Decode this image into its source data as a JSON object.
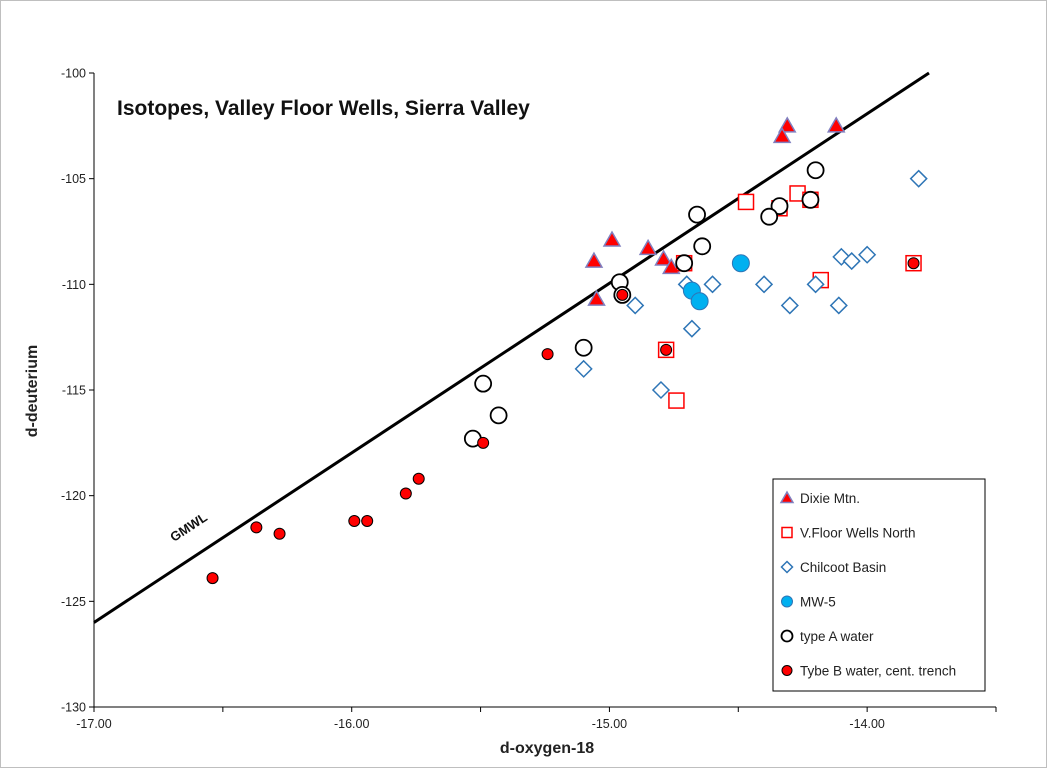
{
  "chart_data": {
    "type": "scatter",
    "title": "Isotopes, Valley Floor Wells, Sierra Valley",
    "xlabel": "d-oxygen-18",
    "ylabel": "d-deuterium",
    "xlim": [
      -17.0,
      -13.5
    ],
    "ylim": [
      -130,
      -100
    ],
    "x_ticks": [
      -17.0,
      -16.0,
      -15.0,
      -14.0
    ],
    "x_tick_labels": [
      "-17.00",
      "-16.00",
      "-15.00",
      "-14.00"
    ],
    "x_minor_ticks": [
      -16.5,
      -15.5,
      -14.5,
      -13.5
    ],
    "y_ticks": [
      -100,
      -105,
      -110,
      -115,
      -120,
      -125,
      -130
    ],
    "y_tick_labels": [
      "-100",
      "-105",
      "-110",
      "-115",
      "-120",
      "-125",
      "-130"
    ],
    "grid": false,
    "legend_position": "bottom-right",
    "reference_line": {
      "label": "GMWL",
      "x": [
        -17.0,
        -13.76
      ],
      "y": [
        -126.0,
        -100.0
      ]
    },
    "series": [
      {
        "name": "Dixie Mtn.",
        "marker": "triangle",
        "fill": "#ff0000",
        "stroke": "#8080c0",
        "points": [
          [
            -14.31,
            -102.5
          ],
          [
            -14.33,
            -103.0
          ],
          [
            -14.12,
            -102.5
          ],
          [
            -14.99,
            -107.9
          ],
          [
            -14.85,
            -108.3
          ],
          [
            -15.06,
            -108.9
          ],
          [
            -14.79,
            -108.8
          ],
          [
            -14.76,
            -109.2
          ],
          [
            -15.05,
            -110.7
          ],
          [
            -14.95,
            -110.3
          ]
        ]
      },
      {
        "name": "V.Floor Wells North",
        "marker": "square",
        "fill": "#ffffff",
        "stroke": "#ff0000",
        "points": [
          [
            -14.47,
            -106.1
          ],
          [
            -14.27,
            -105.7
          ],
          [
            -14.34,
            -106.4
          ],
          [
            -14.22,
            -106.0
          ],
          [
            -14.71,
            -109.0
          ],
          [
            -13.82,
            -109.0
          ],
          [
            -14.18,
            -109.8
          ],
          [
            -14.78,
            -113.1
          ],
          [
            -14.74,
            -115.5
          ]
        ]
      },
      {
        "name": "Chilcoot Basin",
        "marker": "diamond",
        "fill": "#ffffff",
        "stroke": "#2e75b6",
        "points": [
          [
            -13.8,
            -105.0
          ],
          [
            -14.1,
            -108.7
          ],
          [
            -14.0,
            -108.6
          ],
          [
            -14.06,
            -108.9
          ],
          [
            -14.7,
            -110.0
          ],
          [
            -14.6,
            -110.0
          ],
          [
            -14.4,
            -110.0
          ],
          [
            -14.2,
            -110.0
          ],
          [
            -14.9,
            -111.0
          ],
          [
            -14.3,
            -111.0
          ],
          [
            -14.11,
            -111.0
          ],
          [
            -14.68,
            -112.1
          ],
          [
            -15.1,
            -114.0
          ],
          [
            -14.8,
            -115.0
          ]
        ]
      },
      {
        "name": "MW-5",
        "marker": "circle-filled",
        "fill": "#00b0f0",
        "stroke": "#2e75b6",
        "points": [
          [
            -14.49,
            -109.0
          ],
          [
            -14.68,
            -110.3
          ],
          [
            -14.65,
            -110.8
          ]
        ]
      },
      {
        "name": "type A water",
        "marker": "circle-open",
        "fill": "#ffffff",
        "stroke": "#000000",
        "points": [
          [
            -14.2,
            -104.6
          ],
          [
            -14.22,
            -106.0
          ],
          [
            -14.34,
            -106.3
          ],
          [
            -14.38,
            -106.8
          ],
          [
            -14.66,
            -106.7
          ],
          [
            -14.64,
            -108.2
          ],
          [
            -14.71,
            -109.0
          ],
          [
            -14.96,
            -109.9
          ],
          [
            -14.95,
            -110.5
          ],
          [
            -15.1,
            -113.0
          ],
          [
            -15.49,
            -114.7
          ],
          [
            -15.43,
            -116.2
          ],
          [
            -15.53,
            -117.3
          ]
        ]
      },
      {
        "name": "Tybe B water, cent. trench",
        "marker": "circle-dot",
        "fill": "#ff0000",
        "stroke": "#000000",
        "points": [
          [
            -15.24,
            -113.3
          ],
          [
            -15.49,
            -117.5
          ],
          [
            -15.74,
            -119.2
          ],
          [
            -15.79,
            -119.9
          ],
          [
            -15.94,
            -121.2
          ],
          [
            -15.99,
            -121.2
          ],
          [
            -16.28,
            -121.8
          ],
          [
            -16.37,
            -121.5
          ],
          [
            -16.54,
            -123.9
          ],
          [
            -14.78,
            -113.1
          ],
          [
            -14.95,
            -110.5
          ],
          [
            -13.82,
            -109.0
          ]
        ]
      }
    ]
  }
}
